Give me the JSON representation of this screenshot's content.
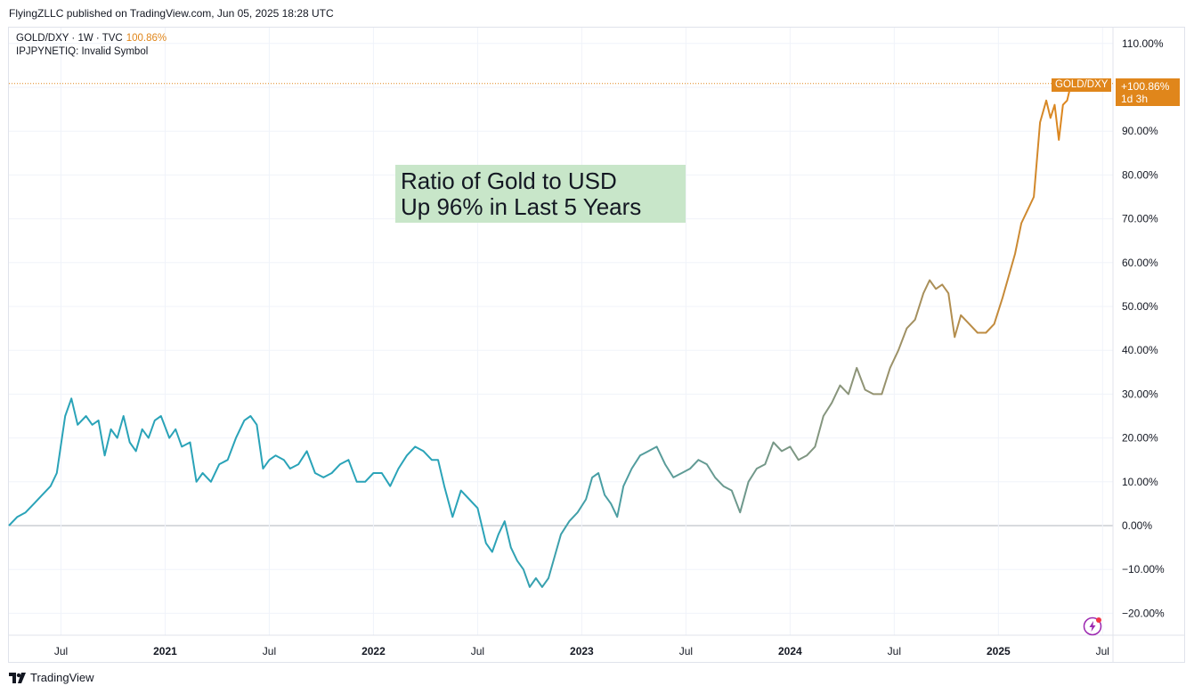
{
  "header": {
    "text": "FlyingZLLC published on TradingView.com, Jun 05, 2025 18:28 UTC"
  },
  "legend": {
    "symbol": "GOLD/DXY · 1W · TVC",
    "change": "100.86%",
    "line2": "IPJPYNETIQ: Invalid Symbol"
  },
  "annotation": {
    "line1": "Ratio of Gold to USD",
    "line2": "Up 96% in Last 5 Years"
  },
  "price_tag": {
    "symbol": "GOLD/DXY",
    "value": "+100.86%",
    "countdown": "1d 3h"
  },
  "footer": {
    "brand": "TradingView"
  },
  "icons": {
    "logo": "tradingview-logo-icon",
    "bolt": "lightning-bolt-icon"
  },
  "colors": {
    "line_start": "#2aa3b8",
    "line_mid": "#8e9478",
    "line_end": "#e0861b",
    "label_bg": "#e0861b"
  },
  "chart_data": {
    "type": "line",
    "title": "",
    "series_name": "GOLD/DXY",
    "x_ticks": [
      {
        "label": "Jul",
        "date": 2020.5,
        "bold": false
      },
      {
        "label": "2021",
        "date": 2021.0,
        "bold": true
      },
      {
        "label": "Jul",
        "date": 2021.5,
        "bold": false
      },
      {
        "label": "2022",
        "date": 2022.0,
        "bold": true
      },
      {
        "label": "Jul",
        "date": 2022.5,
        "bold": false
      },
      {
        "label": "2023",
        "date": 2023.0,
        "bold": true
      },
      {
        "label": "Jul",
        "date": 2023.5,
        "bold": false
      },
      {
        "label": "2024",
        "date": 2024.0,
        "bold": true
      },
      {
        "label": "Jul",
        "date": 2024.5,
        "bold": false
      },
      {
        "label": "2025",
        "date": 2025.0,
        "bold": true
      },
      {
        "label": "Jul",
        "date": 2025.5,
        "bold": false
      }
    ],
    "y_ticks": [
      "110.00%",
      "100.00%",
      "90.00%",
      "80.00%",
      "70.00%",
      "60.00%",
      "50.00%",
      "40.00%",
      "30.00%",
      "20.00%",
      "10.00%",
      "0.00%",
      "−10.00%",
      "−20.00%"
    ],
    "y_tick_values": [
      110,
      100,
      90,
      80,
      70,
      60,
      50,
      40,
      30,
      20,
      10,
      0,
      -10,
      -20
    ],
    "ylim": [
      -24,
      113
    ],
    "xlim": [
      2020.25,
      2025.55
    ],
    "grid": true,
    "unit": "%",
    "points": [
      [
        2020.25,
        0
      ],
      [
        2020.29,
        2
      ],
      [
        2020.33,
        3
      ],
      [
        2020.37,
        5
      ],
      [
        2020.41,
        7
      ],
      [
        2020.45,
        9
      ],
      [
        2020.48,
        12
      ],
      [
        2020.52,
        25
      ],
      [
        2020.55,
        29
      ],
      [
        2020.58,
        23
      ],
      [
        2020.62,
        25
      ],
      [
        2020.65,
        23
      ],
      [
        2020.68,
        24
      ],
      [
        2020.71,
        16
      ],
      [
        2020.74,
        22
      ],
      [
        2020.77,
        20
      ],
      [
        2020.8,
        25
      ],
      [
        2020.83,
        19
      ],
      [
        2020.86,
        17
      ],
      [
        2020.89,
        22
      ],
      [
        2020.92,
        20
      ],
      [
        2020.95,
        24
      ],
      [
        2020.98,
        25
      ],
      [
        2021.02,
        20
      ],
      [
        2021.05,
        22
      ],
      [
        2021.08,
        18
      ],
      [
        2021.12,
        19
      ],
      [
        2021.15,
        10
      ],
      [
        2021.18,
        12
      ],
      [
        2021.22,
        10
      ],
      [
        2021.26,
        14
      ],
      [
        2021.3,
        15
      ],
      [
        2021.34,
        20
      ],
      [
        2021.38,
        24
      ],
      [
        2021.41,
        25
      ],
      [
        2021.44,
        23
      ],
      [
        2021.47,
        13
      ],
      [
        2021.5,
        15
      ],
      [
        2021.53,
        16
      ],
      [
        2021.57,
        15
      ],
      [
        2021.6,
        13
      ],
      [
        2021.64,
        14
      ],
      [
        2021.68,
        17
      ],
      [
        2021.72,
        12
      ],
      [
        2021.76,
        11
      ],
      [
        2021.8,
        12
      ],
      [
        2021.84,
        14
      ],
      [
        2021.88,
        15
      ],
      [
        2021.92,
        10
      ],
      [
        2021.96,
        10
      ],
      [
        2022.0,
        12
      ],
      [
        2022.04,
        12
      ],
      [
        2022.08,
        9
      ],
      [
        2022.12,
        13
      ],
      [
        2022.16,
        16
      ],
      [
        2022.2,
        18
      ],
      [
        2022.24,
        17
      ],
      [
        2022.28,
        15
      ],
      [
        2022.31,
        15
      ],
      [
        2022.34,
        9
      ],
      [
        2022.38,
        2
      ],
      [
        2022.42,
        8
      ],
      [
        2022.46,
        6
      ],
      [
        2022.5,
        4
      ],
      [
        2022.54,
        -4
      ],
      [
        2022.57,
        -6
      ],
      [
        2022.6,
        -2
      ],
      [
        2022.63,
        1
      ],
      [
        2022.66,
        -5
      ],
      [
        2022.69,
        -8
      ],
      [
        2022.72,
        -10
      ],
      [
        2022.75,
        -14
      ],
      [
        2022.78,
        -12
      ],
      [
        2022.81,
        -14
      ],
      [
        2022.84,
        -12
      ],
      [
        2022.87,
        -7
      ],
      [
        2022.9,
        -2
      ],
      [
        2022.94,
        1
      ],
      [
        2022.98,
        3
      ],
      [
        2023.02,
        6
      ],
      [
        2023.05,
        11
      ],
      [
        2023.08,
        12
      ],
      [
        2023.11,
        7
      ],
      [
        2023.14,
        5
      ],
      [
        2023.17,
        2
      ],
      [
        2023.2,
        9
      ],
      [
        2023.24,
        13
      ],
      [
        2023.28,
        16
      ],
      [
        2023.32,
        17
      ],
      [
        2023.36,
        18
      ],
      [
        2023.4,
        14
      ],
      [
        2023.44,
        11
      ],
      [
        2023.48,
        12
      ],
      [
        2023.52,
        13
      ],
      [
        2023.56,
        15
      ],
      [
        2023.6,
        14
      ],
      [
        2023.64,
        11
      ],
      [
        2023.68,
        9
      ],
      [
        2023.72,
        8
      ],
      [
        2023.76,
        3
      ],
      [
        2023.8,
        10
      ],
      [
        2023.84,
        13
      ],
      [
        2023.88,
        14
      ],
      [
        2023.92,
        19
      ],
      [
        2023.96,
        17
      ],
      [
        2024.0,
        18
      ],
      [
        2024.04,
        15
      ],
      [
        2024.08,
        16
      ],
      [
        2024.12,
        18
      ],
      [
        2024.16,
        25
      ],
      [
        2024.2,
        28
      ],
      [
        2024.24,
        32
      ],
      [
        2024.28,
        30
      ],
      [
        2024.32,
        36
      ],
      [
        2024.36,
        31
      ],
      [
        2024.4,
        30
      ],
      [
        2024.44,
        30
      ],
      [
        2024.48,
        36
      ],
      [
        2024.52,
        40
      ],
      [
        2024.56,
        45
      ],
      [
        2024.6,
        47
      ],
      [
        2024.64,
        53
      ],
      [
        2024.67,
        56
      ],
      [
        2024.7,
        54
      ],
      [
        2024.73,
        55
      ],
      [
        2024.76,
        53
      ],
      [
        2024.79,
        43
      ],
      [
        2024.82,
        48
      ],
      [
        2024.86,
        46
      ],
      [
        2024.9,
        44
      ],
      [
        2024.94,
        44
      ],
      [
        2024.98,
        46
      ],
      [
        2025.02,
        52
      ],
      [
        2025.05,
        57
      ],
      [
        2025.08,
        62
      ],
      [
        2025.11,
        69
      ],
      [
        2025.14,
        72
      ],
      [
        2025.17,
        75
      ],
      [
        2025.2,
        92
      ],
      [
        2025.23,
        97
      ],
      [
        2025.25,
        93
      ],
      [
        2025.27,
        96
      ],
      [
        2025.29,
        88
      ],
      [
        2025.31,
        96
      ],
      [
        2025.33,
        97
      ],
      [
        2025.35,
        101
      ]
    ],
    "last_value": 100.86
  }
}
